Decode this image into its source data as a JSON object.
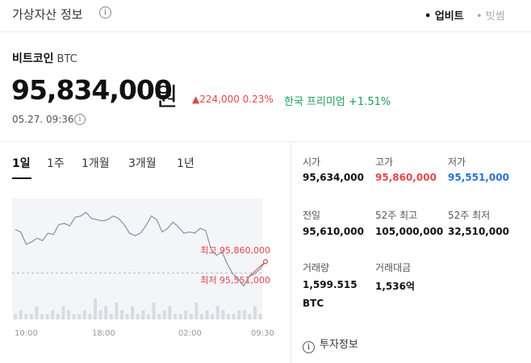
{
  "header": {
    "title": "가상자산 정보",
    "exchanges": [
      {
        "label": "• 업비트",
        "active": true
      },
      {
        "label": "• 빗썸",
        "active": false
      }
    ]
  },
  "coin": {
    "name": "비트코인",
    "symbol": "BTC",
    "price": "95,834,000",
    "price_unit": "원",
    "change": "▲224,000 0.23%",
    "premium": "한국 프리미엄 +1.51%",
    "timestamp": "05.27. 09:36"
  },
  "periods": [
    "1일",
    "1주",
    "1개월",
    "3개월",
    "1년"
  ],
  "chart": {
    "high_label": "최고 95,860,000",
    "low_label": "최저 95,551,000",
    "x_labels": [
      "10:00",
      "18:00",
      "02:00",
      "09:30"
    ]
  },
  "stats": {
    "open": {
      "label": "시가",
      "value": "95,634,000"
    },
    "high": {
      "label": "고가",
      "value": "95,860,000"
    },
    "low": {
      "label": "저가",
      "value": "95,551,000"
    },
    "prev_close": {
      "label": "전일",
      "value": "95,610,000"
    },
    "week52_high": {
      "label": "52주 최고",
      "value": "105,000,000"
    },
    "week52_low": {
      "label": "52주 최저",
      "value": "32,510,000"
    },
    "volume": {
      "label": "거래량",
      "value": "1,599.515",
      "unit": "BTC"
    },
    "turnover": {
      "label": "거래대금",
      "value": "1,536억"
    }
  },
  "invest_info": "투자정보",
  "chart_data": {
    "type": "line",
    "x": [
      "10:00",
      "18:00",
      "02:00",
      "09:30"
    ],
    "price_series": [
      95780000,
      95770000,
      95720000,
      95730000,
      95745000,
      95735000,
      95765000,
      95760000,
      95800000,
      95805000,
      95795000,
      95830000,
      95835000,
      95850000,
      95825000,
      95820000,
      95815000,
      95820000,
      95835000,
      95825000,
      95800000,
      95765000,
      95755000,
      95765000,
      95795000,
      95835000,
      95820000,
      95770000,
      95785000,
      95810000,
      95790000,
      95765000,
      95770000,
      95765000,
      95785000,
      95775000,
      95700000,
      95675000,
      95690000,
      95640000,
      95600000,
      95580000,
      95551000,
      95590000,
      95600000,
      95620000,
      95650000
    ],
    "high": 95860000,
    "low": 95551000,
    "prev_close": 95610000,
    "volume_series": [
      1,
      2,
      1,
      1,
      3,
      1,
      1,
      2,
      1,
      3,
      2,
      1,
      1,
      2,
      1,
      5,
      2,
      3,
      1,
      4,
      2,
      1,
      3,
      1,
      2,
      1,
      4,
      1,
      2,
      3,
      1,
      1,
      2,
      1,
      4,
      1,
      2,
      1,
      3,
      2,
      1,
      1,
      2,
      2,
      1,
      3,
      1
    ]
  }
}
